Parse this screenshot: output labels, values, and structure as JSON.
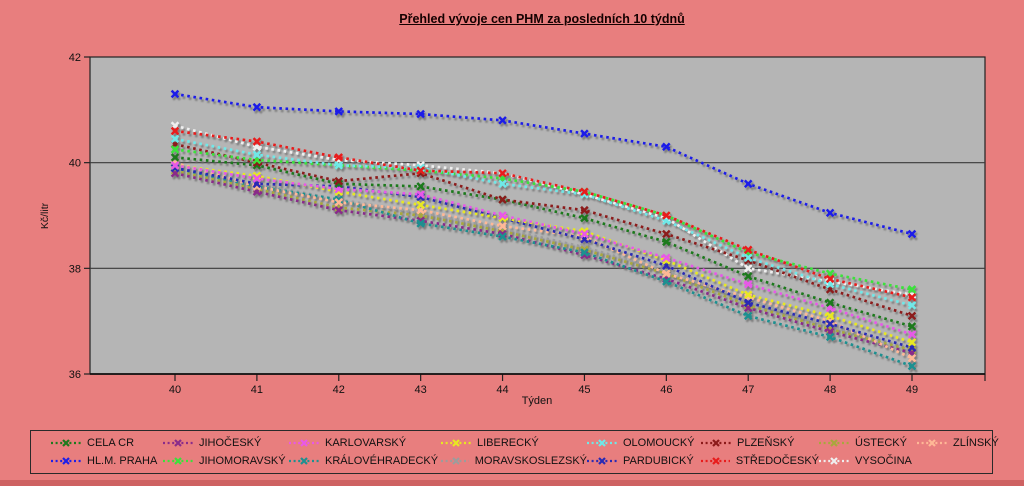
{
  "title": "Přehled vývoje cen PHM za posledních 10 týdnů",
  "colors": {
    "background": "#e87e7e",
    "plot_background": "#b5b5b5",
    "axis": "#222222",
    "gridline": "#3a3a3a",
    "text": "#111111"
  },
  "chart_data": {
    "type": "line",
    "title": "Přehled vývoje cen PHM za posledních 10 týdnů",
    "xlabel": "Týden",
    "ylabel": "Kč/litr",
    "x": [
      40,
      41,
      42,
      43,
      44,
      45,
      46,
      47,
      48,
      49
    ],
    "ylim": [
      36,
      42
    ],
    "y_ticks": [
      36,
      38,
      40,
      42
    ],
    "gridlines_y": [
      38,
      40
    ],
    "grid": "horizontal only",
    "legend_position": "bottom box, two rows",
    "line_style": "dotted with X markers and drop shadow",
    "series": [
      {
        "name": "MORAVSKOSLEZSKÝ",
        "color": "#9c9c9c",
        "values": [
          39.9,
          39.6,
          39.3,
          39.05,
          38.75,
          38.4,
          37.95,
          37.4,
          36.9,
          36.4
        ]
      },
      {
        "name": "VYSOČINA",
        "color": "#efefef",
        "values": [
          40.7,
          40.3,
          40.05,
          39.95,
          39.8,
          39.4,
          38.95,
          38.0,
          37.75,
          37.5
        ]
      },
      {
        "name": "ÚSTECKÝ",
        "color": "#a8a83c",
        "values": [
          39.85,
          39.5,
          39.15,
          39.0,
          38.7,
          38.35,
          37.9,
          37.3,
          36.85,
          36.45
        ]
      },
      {
        "name": "JIHOČESKÝ",
        "color": "#8a2c8a",
        "values": [
          39.8,
          39.45,
          39.1,
          38.9,
          38.65,
          38.25,
          37.8,
          37.25,
          36.8,
          36.4
        ]
      },
      {
        "name": "KRÁLOVÉHRADECKÝ",
        "color": "#1d9090",
        "values": [
          39.9,
          39.55,
          39.3,
          38.85,
          38.6,
          38.3,
          37.75,
          37.1,
          36.7,
          36.15
        ]
      },
      {
        "name": "ZLÍNSKÝ",
        "color": "#ffb896",
        "values": [
          40.0,
          39.55,
          39.25,
          39.1,
          38.8,
          38.6,
          37.9,
          37.45,
          37.0,
          36.3
        ]
      },
      {
        "name": "PARDUBICKÝ",
        "color": "#2a2ab4",
        "values": [
          39.9,
          39.6,
          39.55,
          39.35,
          38.95,
          38.55,
          38.05,
          37.35,
          36.95,
          36.5
        ]
      },
      {
        "name": "LIBERECKÝ",
        "color": "#e8e820",
        "values": [
          39.95,
          39.75,
          39.45,
          39.2,
          38.95,
          38.7,
          38.15,
          37.5,
          37.1,
          36.6
        ]
      },
      {
        "name": "KARLOVARSKÝ",
        "color": "#e858e8",
        "values": [
          39.95,
          39.7,
          39.5,
          39.4,
          39.0,
          38.65,
          38.2,
          37.7,
          37.25,
          36.75
        ]
      },
      {
        "name": "CELA CR",
        "color": "#1e7a1e",
        "values": [
          40.1,
          39.95,
          39.6,
          39.55,
          39.3,
          38.95,
          38.5,
          37.85,
          37.35,
          36.9
        ]
      },
      {
        "name": "PLZEŇSKÝ",
        "color": "#8c1a1a",
        "values": [
          40.35,
          40.0,
          39.65,
          39.8,
          39.3,
          39.1,
          38.65,
          38.15,
          37.6,
          37.1
        ]
      },
      {
        "name": "JIHOMORAVSKÝ",
        "color": "#3ae23a",
        "values": [
          40.25,
          40.05,
          39.95,
          39.85,
          39.7,
          39.45,
          39.0,
          38.3,
          37.9,
          37.6
        ]
      },
      {
        "name": "OLOMOUCKÝ",
        "color": "#6fe8e8",
        "values": [
          40.45,
          40.15,
          39.95,
          39.9,
          39.6,
          39.4,
          38.9,
          38.2,
          37.7,
          37.3
        ]
      },
      {
        "name": "STŘEDOČESKÝ",
        "color": "#e81c1c",
        "values": [
          40.6,
          40.4,
          40.1,
          39.85,
          39.8,
          39.45,
          39.0,
          38.35,
          37.8,
          37.45
        ]
      },
      {
        "name": "HL.M. PRAHA",
        "color": "#1f1fe8",
        "values": [
          41.3,
          41.05,
          40.97,
          40.92,
          40.8,
          40.55,
          40.3,
          39.6,
          39.05,
          38.65
        ]
      }
    ],
    "legend_rows": [
      [
        "CELA CR",
        "JIHOČESKÝ",
        "KARLOVARSKÝ",
        "LIBERECKÝ",
        "OLOMOUCKÝ",
        "PLZEŇSKÝ",
        "ÚSTECKÝ",
        "ZLÍNSKÝ"
      ],
      [
        "HL.M. PRAHA",
        "JIHOMORAVSKÝ",
        "KRÁLOVÉHRADECKÝ",
        "MORAVSKOSLEZSKÝ",
        "PARDUBICKÝ",
        "STŘEDOČESKÝ",
        "VYSOČINA"
      ]
    ]
  }
}
